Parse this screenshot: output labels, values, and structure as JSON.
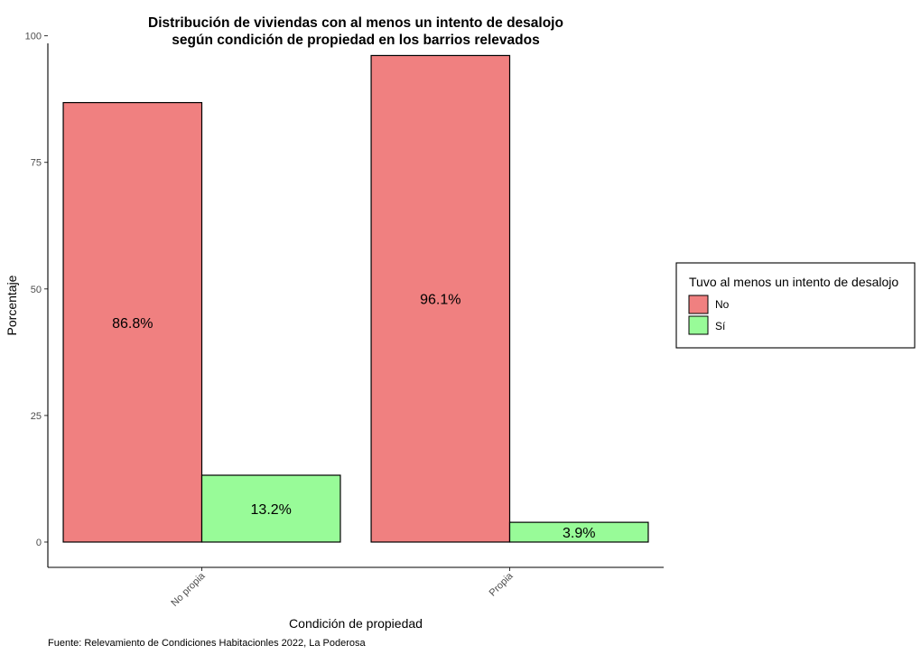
{
  "chart_data": {
    "type": "bar",
    "title_lines": [
      "Distribución de viviendas con al menos un intento de desalojo",
      "según condición de propiedad en los barrios relevados"
    ],
    "xlabel": "Condición de propiedad",
    "ylabel": "Porcentaje",
    "categories": [
      "No propia",
      "Propia"
    ],
    "series": [
      {
        "name": "No",
        "color": "#f08080",
        "values": [
          86.8,
          96.1
        ],
        "labels": [
          "86.8%",
          "96.1%"
        ]
      },
      {
        "name": "Sí",
        "color": "#98fb98",
        "values": [
          13.2,
          3.9
        ],
        "labels": [
          "13.2%",
          "3.9%"
        ]
      }
    ],
    "ylim": [
      0,
      100
    ],
    "yticks": [
      0,
      25,
      50,
      75,
      100
    ],
    "legend": {
      "title": "Tuvo al menos un intento de desalojo",
      "position": "right"
    },
    "grid": false,
    "caption": "Fuente: Relevamiento de Condiciones Habitacionles 2022, La Poderosa"
  }
}
